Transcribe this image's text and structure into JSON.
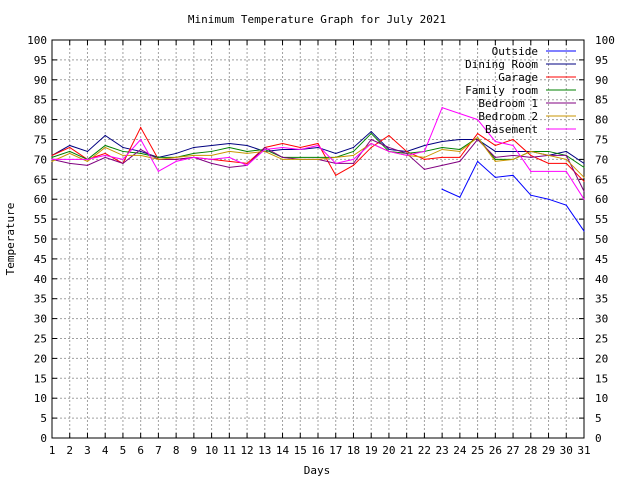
{
  "chart_data": {
    "type": "line",
    "title": "Minimum Temperature Graph for July 2021",
    "xlabel": "Days",
    "ylabel": "Temperature",
    "xlim": [
      1,
      31
    ],
    "ylim": [
      0,
      100
    ],
    "x_ticks": [
      1,
      2,
      3,
      4,
      5,
      6,
      7,
      8,
      9,
      10,
      11,
      12,
      13,
      14,
      15,
      16,
      17,
      18,
      19,
      20,
      21,
      22,
      23,
      24,
      25,
      26,
      27,
      28,
      29,
      30,
      31
    ],
    "y_ticks": [
      0,
      5,
      10,
      15,
      20,
      25,
      30,
      35,
      40,
      45,
      50,
      55,
      60,
      65,
      70,
      75,
      80,
      85,
      90,
      95,
      100
    ],
    "grid": true,
    "legend_position": "top-right",
    "series": [
      {
        "name": "Outside",
        "color": "#0000ff",
        "x": [
          23,
          24,
          25,
          26,
          27,
          28,
          29,
          30,
          31
        ],
        "values": [
          62.5,
          60.5,
          69.5,
          65.5,
          66,
          61,
          60,
          58.5,
          52
        ]
      },
      {
        "name": "Dining Room",
        "color": "#000080",
        "x": [
          1,
          2,
          3,
          4,
          5,
          6,
          7,
          8,
          9,
          10,
          11,
          12,
          13,
          14,
          15,
          16,
          17,
          18,
          19,
          20,
          21,
          22,
          23,
          24,
          25,
          26,
          27,
          28,
          29,
          30,
          31
        ],
        "values": [
          71,
          73.5,
          72,
          76,
          73,
          72,
          70.5,
          71.5,
          73,
          73.5,
          74,
          73.5,
          72,
          72.5,
          72.5,
          73,
          71.5,
          73,
          77,
          72.5,
          72,
          73.5,
          74.5,
          75,
          75,
          72,
          72,
          72,
          71,
          72,
          69
        ]
      },
      {
        "name": "Garage",
        "color": "#ff0000",
        "x": [
          1,
          2,
          3,
          4,
          5,
          6,
          7,
          8,
          9,
          10,
          11,
          12,
          13,
          14,
          15,
          16,
          17,
          18,
          19,
          20,
          21,
          22,
          23,
          24,
          25,
          26,
          27,
          28,
          29,
          30,
          31
        ],
        "values": [
          71,
          73,
          70,
          71.5,
          69,
          78,
          70,
          70,
          70.5,
          70,
          69.5,
          69,
          73,
          74,
          73,
          74,
          66,
          68.5,
          73,
          76,
          72,
          70,
          70.5,
          70.5,
          76.5,
          73.5,
          75,
          71,
          69,
          69,
          64.5
        ]
      },
      {
        "name": "Family room",
        "color": "#008000",
        "x": [
          1,
          2,
          3,
          4,
          5,
          6,
          7,
          8,
          9,
          10,
          11,
          12,
          13,
          14,
          15,
          16,
          17,
          18,
          19,
          20,
          21,
          22,
          23,
          24,
          25,
          26,
          27,
          28,
          29,
          30,
          31
        ],
        "values": [
          70.5,
          72,
          70,
          73.5,
          72,
          71.5,
          70.5,
          70.5,
          71.5,
          72,
          73,
          72,
          72.5,
          70.5,
          70.5,
          70.5,
          70.5,
          72,
          76.5,
          72,
          71.5,
          72,
          73,
          72.5,
          75.5,
          70,
          70,
          72,
          72,
          71,
          68
        ]
      },
      {
        "name": "Bedroom 1",
        "color": "#800080",
        "x": [
          1,
          2,
          3,
          4,
          5,
          6,
          7,
          8,
          9,
          10,
          11,
          12,
          13,
          14,
          15,
          16,
          17,
          18,
          19,
          20,
          21,
          22,
          23,
          24,
          25,
          26,
          27,
          28,
          29,
          30,
          31
        ],
        "values": [
          70,
          69,
          68.5,
          70.5,
          69,
          72.5,
          70,
          70,
          70.5,
          69,
          68,
          68.5,
          73,
          70.5,
          70,
          70,
          69,
          69,
          75,
          73,
          71.5,
          67.5,
          68.5,
          69.5,
          75,
          70.5,
          71,
          70.5,
          71,
          71,
          62
        ]
      },
      {
        "name": "Bedroom 2",
        "color": "#c89600",
        "x": [
          1,
          2,
          3,
          4,
          5,
          6,
          7,
          8,
          9,
          10,
          11,
          12,
          13,
          14,
          15,
          16,
          17,
          18,
          19,
          20,
          21,
          22,
          23,
          24,
          25,
          26,
          27,
          28,
          29,
          30,
          31
        ],
        "values": [
          69.5,
          71.5,
          69.5,
          73,
          71,
          71,
          70,
          70.5,
          71,
          71,
          72,
          71.5,
          72,
          70,
          70,
          70,
          70.5,
          71,
          74,
          72,
          71,
          70.5,
          72.5,
          72,
          75.5,
          69.5,
          70,
          72,
          71,
          70,
          65.5
        ]
      },
      {
        "name": "Basement",
        "color": "#ff00ff",
        "x": [
          1,
          2,
          3,
          4,
          5,
          6,
          7,
          8,
          9,
          10,
          11,
          12,
          13,
          14,
          15,
          16,
          17,
          18,
          19,
          20,
          21,
          22,
          23,
          24,
          25,
          26,
          27,
          28,
          29,
          30,
          31
        ],
        "values": [
          70,
          70,
          70,
          71,
          70,
          75,
          67,
          69.5,
          70.5,
          70,
          70.5,
          68.5,
          72.5,
          73,
          72.5,
          73.5,
          69,
          70,
          74,
          72,
          71,
          72,
          83,
          81.5,
          80,
          74.5,
          73.5,
          67,
          67,
          67,
          60
        ]
      }
    ]
  }
}
